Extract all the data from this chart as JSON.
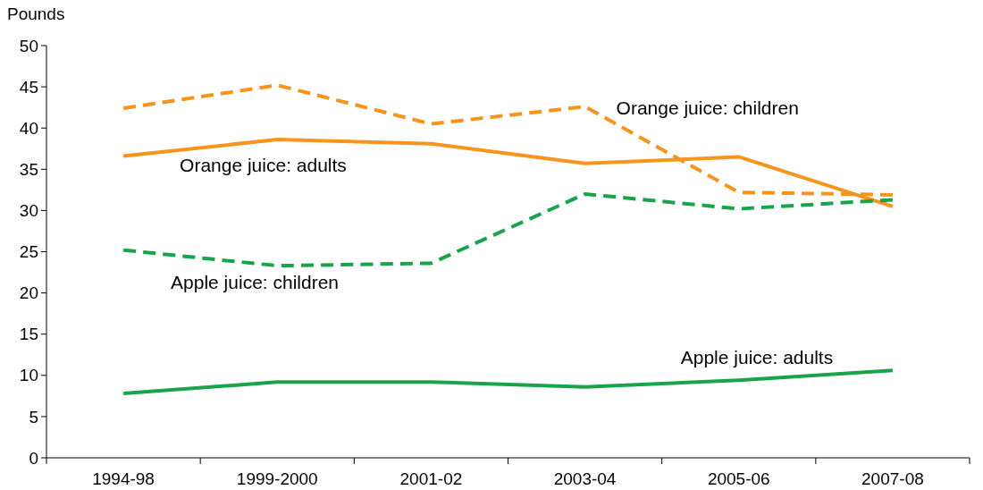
{
  "chart_data": {
    "type": "line",
    "ylabel": "Pounds",
    "categories": [
      "1994-98",
      "1999-2000",
      "2001-02",
      "2003-04",
      "2005-06",
      "2007-08"
    ],
    "ylim": [
      0,
      50
    ],
    "yticks": [
      0,
      5,
      10,
      15,
      20,
      25,
      30,
      35,
      40,
      45,
      50
    ],
    "grid": false,
    "marker": "none",
    "series": [
      {
        "name": "Orange juice: children",
        "color": "#f7941d",
        "line_style": "dashed",
        "values": [
          42.4,
          45.2,
          40.5,
          42.6,
          32.2,
          31.9
        ]
      },
      {
        "name": "Orange juice: adults",
        "color": "#f7941d",
        "line_style": "solid",
        "values": [
          36.6,
          38.6,
          38.1,
          35.7,
          36.5,
          30.5
        ]
      },
      {
        "name": "Apple juice: children",
        "color": "#1aa34a",
        "line_style": "dashed",
        "values": [
          25.2,
          23.3,
          23.6,
          32.0,
          30.2,
          31.3
        ]
      },
      {
        "name": "Apple juice: adults",
        "color": "#1aa34a",
        "line_style": "solid",
        "values": [
          7.8,
          9.2,
          9.2,
          8.6,
          9.4,
          10.6
        ]
      }
    ]
  }
}
